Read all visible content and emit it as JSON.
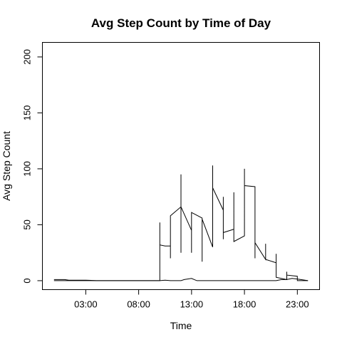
{
  "chart_data": {
    "type": "line",
    "title": "Avg Step Count by Time of Day",
    "xlabel": "Time",
    "ylabel": "Avg Step Count",
    "x_unit": "hours",
    "xlim": [
      -1.1,
      25.1
    ],
    "ylim": [
      -8,
      213
    ],
    "x_ticks": [
      {
        "value": 3,
        "label": "03:00"
      },
      {
        "value": 8,
        "label": "08:00"
      },
      {
        "value": 13,
        "label": "13:00"
      },
      {
        "value": 18,
        "label": "18:00"
      },
      {
        "value": 23,
        "label": "23:00"
      }
    ],
    "y_ticks": [
      {
        "value": 0,
        "label": "0"
      },
      {
        "value": 50,
        "label": "50"
      },
      {
        "value": 100,
        "label": "100"
      },
      {
        "value": 150,
        "label": "150"
      },
      {
        "value": 200,
        "label": "200"
      }
    ],
    "grid": false,
    "legend": "none",
    "series": [
      {
        "points": [
          [
            0,
            1
          ],
          [
            1,
            1
          ],
          [
            1.4,
            0.5
          ],
          [
            2,
            0.5
          ],
          [
            3,
            0.5
          ],
          [
            4,
            0
          ],
          [
            5,
            0
          ],
          [
            6,
            0
          ],
          [
            7,
            0
          ],
          [
            8,
            0
          ],
          [
            9,
            0
          ],
          [
            10,
            0
          ],
          [
            10.0,
            52
          ],
          [
            10.0,
            32
          ],
          [
            10.5,
            31
          ],
          [
            11.0,
            31
          ],
          [
            11.0,
            20
          ],
          [
            11.0,
            58
          ],
          [
            12.0,
            66
          ],
          [
            12.0,
            25
          ],
          [
            12.0,
            95
          ],
          [
            12.0,
            66
          ],
          [
            13.0,
            45
          ],
          [
            13.0,
            25
          ],
          [
            13.0,
            61
          ],
          [
            14.0,
            56
          ],
          [
            14.0,
            17
          ],
          [
            14.0,
            55
          ],
          [
            15.0,
            30
          ],
          [
            15.0,
            103
          ],
          [
            15.0,
            83
          ],
          [
            16.0,
            63
          ],
          [
            16.0,
            37
          ],
          [
            16.0,
            75
          ],
          [
            16.0,
            43
          ],
          [
            17.0,
            46
          ],
          [
            17.0,
            79
          ],
          [
            17.0,
            35
          ],
          [
            18.0,
            40
          ],
          [
            18.0,
            100
          ],
          [
            18.0,
            85
          ],
          [
            19.0,
            84
          ],
          [
            19.0,
            20
          ],
          [
            19.0,
            34
          ],
          [
            20.0,
            19
          ],
          [
            20.0,
            33
          ],
          [
            20.0,
            19
          ],
          [
            21.0,
            16
          ],
          [
            21.0,
            24
          ],
          [
            21.0,
            3
          ],
          [
            22.0,
            1
          ],
          [
            22.0,
            8
          ],
          [
            22.0,
            5
          ],
          [
            23.0,
            4
          ],
          [
            23.0,
            1
          ],
          [
            23.0,
            0
          ],
          [
            24.0,
            0
          ]
        ]
      },
      {
        "points": [
          [
            0,
            0
          ],
          [
            9,
            0
          ],
          [
            10,
            0
          ],
          [
            10.5,
            0.5
          ],
          [
            11,
            0
          ],
          [
            12,
            0
          ],
          [
            12.3,
            1
          ],
          [
            13,
            2
          ],
          [
            13.5,
            0
          ],
          [
            14,
            0
          ],
          [
            15,
            0
          ],
          [
            16,
            0
          ],
          [
            17,
            0
          ],
          [
            18,
            0
          ],
          [
            19,
            0
          ],
          [
            20,
            0
          ],
          [
            21,
            0
          ],
          [
            21.5,
            1
          ],
          [
            22,
            1
          ],
          [
            22.5,
            2
          ],
          [
            23,
            1.5
          ],
          [
            24,
            0
          ]
        ]
      }
    ]
  }
}
